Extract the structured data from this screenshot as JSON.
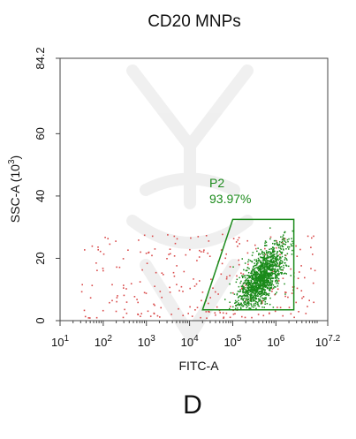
{
  "chart_data": {
    "type": "scatter",
    "title": "CD20 MNPs",
    "xlabel": "FITC-A",
    "ylabel": "SSC-A (10",
    "ylabel_sup": "3",
    "ylabel_close": ")",
    "x_scale": "log",
    "xlim": [
      10,
      15848932
    ],
    "ylim": [
      0,
      84.2
    ],
    "x_ticks": [
      {
        "value": 10,
        "base": "10",
        "exp": "1"
      },
      {
        "value": 100,
        "base": "10",
        "exp": "2"
      },
      {
        "value": 1000,
        "base": "10",
        "exp": "3"
      },
      {
        "value": 10000,
        "base": "10",
        "exp": "4"
      },
      {
        "value": 100000,
        "base": "10",
        "exp": "5"
      },
      {
        "value": 1000000,
        "base": "10",
        "exp": "6"
      },
      {
        "value": 15848932,
        "base": "10",
        "exp": "7.2"
      }
    ],
    "y_ticks": [
      {
        "value": 0,
        "label": "0"
      },
      {
        "value": 20,
        "label": "20"
      },
      {
        "value": 40,
        "label": "40"
      },
      {
        "value": 60,
        "label": "60"
      },
      {
        "value": 84.2,
        "label": "84.2"
      }
    ],
    "gate": {
      "name": "P2",
      "percent_label": "93.97%",
      "polygon": [
        [
          20000,
          3.5
        ],
        [
          100000,
          32.5
        ],
        [
          2600000,
          32.5
        ],
        [
          2600000,
          3.5
        ]
      ]
    },
    "series": [
      {
        "population": "gated",
        "color": "#1a8a1a",
        "approx_count": 1450,
        "center_x": 450000,
        "center_y": 14,
        "log_spread": 0.28,
        "y_spread": 5.5,
        "tilt": 0.7
      },
      {
        "population": "ungated",
        "color": "#d94a4a",
        "approx_count": 270,
        "x_range": [
          30,
          8000000
        ],
        "y_range": [
          1,
          28
        ]
      }
    ]
  },
  "caption": "D"
}
